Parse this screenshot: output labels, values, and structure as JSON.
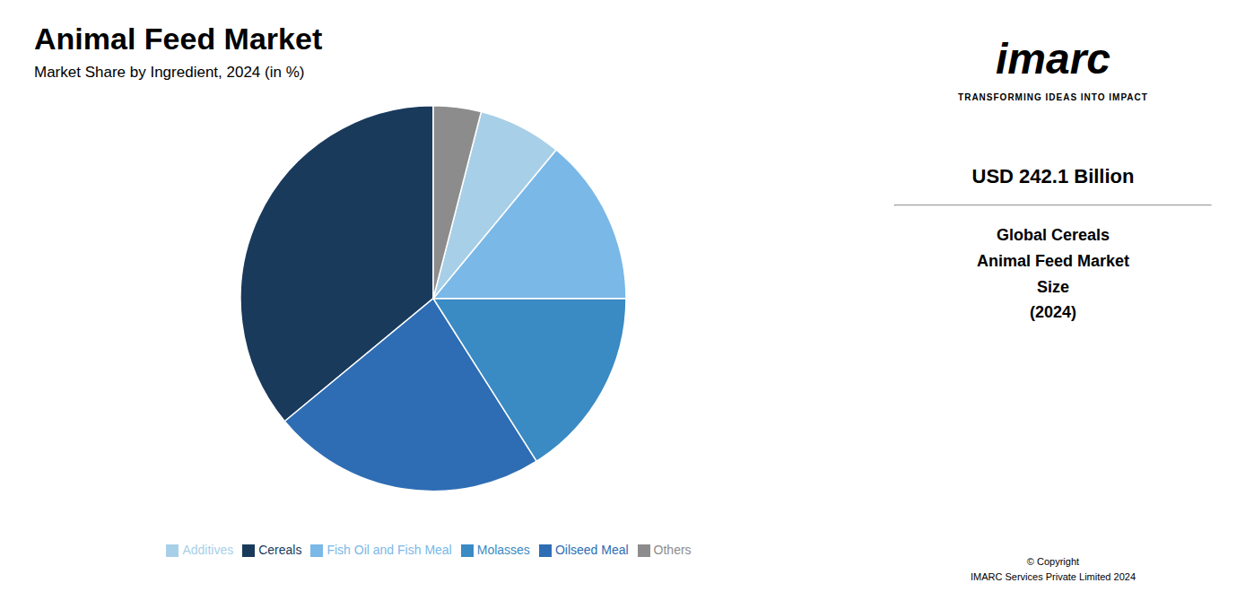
{
  "chart_data": {
    "type": "pie",
    "title": "Animal Feed Market",
    "subtitle": "Market Share by Ingredient, 2024 (in %)",
    "categories": [
      "Cereals",
      "Oilseed Meal",
      "Molasses",
      "Fish Oil and Fish Meal",
      "Additives",
      "Others"
    ],
    "values": [
      36.0,
      23.0,
      16.0,
      14.0,
      7.0,
      4.0
    ],
    "colors": [
      "#1a3a5c",
      "#2e6db4",
      "#3a8ac4",
      "#7ab8e8",
      "#a8cfe8",
      "#8c8c8c"
    ],
    "legend": "bottom",
    "annotations": [
      "imarc",
      "TRANSFORMING IDEAS INTO IMPACT",
      "USD 242.1 Billion",
      "Global Cereals\nAnimal Feed Market\nSize\n(2024)",
      "© Copyright\nIMARC Services Private Limited 2024"
    ]
  }
}
